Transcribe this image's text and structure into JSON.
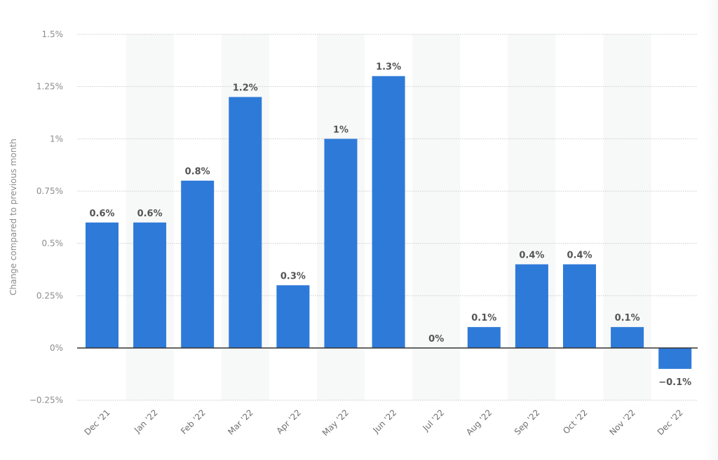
{
  "chart_data": {
    "type": "bar",
    "title": "",
    "xlabel": "",
    "ylabel": "Change compared to previous month",
    "categories": [
      "Dec '21",
      "Jan '22",
      "Feb '22",
      "Mar '22",
      "Apr '22",
      "May '22",
      "Jun '22",
      "Jul '22",
      "Aug '22",
      "Sep '22",
      "Oct '22",
      "Nov '22",
      "Dec '22"
    ],
    "values": [
      0.6,
      0.6,
      0.8,
      1.2,
      0.3,
      1.0,
      1.3,
      0.0,
      0.1,
      0.4,
      0.4,
      0.1,
      -0.1
    ],
    "data_labels": [
      "0.6%",
      "0.6%",
      "0.8%",
      "1.2%",
      "0.3%",
      "1%",
      "1.3%",
      "0%",
      "0.1%",
      "0.4%",
      "0.4%",
      "0.1%",
      "-0.1%"
    ],
    "ylim": [
      -0.25,
      1.5
    ],
    "yticks": [
      1.5,
      1.25,
      1.0,
      0.75,
      0.5,
      0.25,
      0,
      -0.25
    ],
    "ytick_labels": [
      "1.5%",
      "1.25%",
      "1%",
      "0.75%",
      "0.5%",
      "0.25%",
      "0%",
      "-0.25%"
    ],
    "grid": true,
    "legend": null,
    "bar_color": "#2e7ad9"
  },
  "colors": {
    "bar": "#2e7ad9",
    "zero_line": "#333333",
    "grid": "#cccccc",
    "band": "#f7f8f8",
    "tick_text": "#8c8c8c",
    "label_text": "#555555"
  },
  "side_panel": {
    "button_count": 6
  }
}
